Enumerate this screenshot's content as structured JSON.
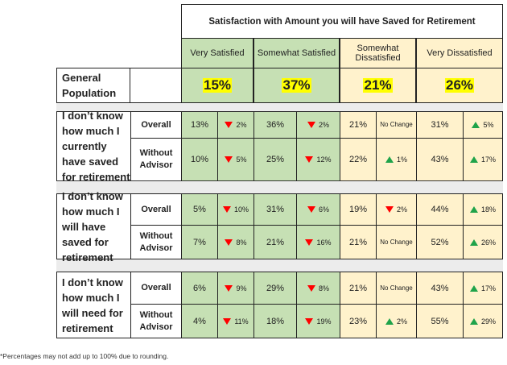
{
  "header": {
    "title": "Satisfaction with Amount you will have Saved for Retirement",
    "categories": [
      "Very Satisfied",
      "Somewhat Satisfied",
      "Somewhat Dissatisfied",
      "Very Dissatisfied"
    ]
  },
  "general": {
    "label": "General Population",
    "values": [
      "15%",
      "37%",
      "21%",
      "26%"
    ]
  },
  "no_change_label": "No Change",
  "blocks": [
    {
      "label": "I don’t know how much I currently have saved for retirement",
      "rows": [
        {
          "sublabel": "Overall",
          "cells": [
            [
              "13%",
              "down",
              "2%"
            ],
            [
              "36%",
              "down",
              "2%"
            ],
            [
              "21%",
              "none",
              ""
            ],
            [
              "31%",
              "up",
              "5%"
            ]
          ]
        },
        {
          "sublabel": "Without Advisor",
          "cells": [
            [
              "10%",
              "down",
              "5%"
            ],
            [
              "25%",
              "down",
              "12%"
            ],
            [
              "22%",
              "up",
              "1%"
            ],
            [
              "43%",
              "up",
              "17%"
            ]
          ]
        }
      ]
    },
    {
      "label": "I don’t know how much I will have saved for retirement",
      "rows": [
        {
          "sublabel": "Overall",
          "cells": [
            [
              "5%",
              "down",
              "10%"
            ],
            [
              "31%",
              "down",
              "6%"
            ],
            [
              "19%",
              "down",
              "2%"
            ],
            [
              "44%",
              "up",
              "18%"
            ]
          ]
        },
        {
          "sublabel": "Without Advisor",
          "cells": [
            [
              "7%",
              "down",
              "8%"
            ],
            [
              "21%",
              "down",
              "16%"
            ],
            [
              "21%",
              "none",
              ""
            ],
            [
              "52%",
              "up",
              "26%"
            ]
          ]
        }
      ]
    },
    {
      "label": "I don’t know how much I will need for retirement",
      "rows": [
        {
          "sublabel": "Overall",
          "cells": [
            [
              "6%",
              "down",
              "9%"
            ],
            [
              "29%",
              "down",
              "8%"
            ],
            [
              "21%",
              "none",
              ""
            ],
            [
              "43%",
              "up",
              "17%"
            ]
          ]
        },
        {
          "sublabel": "Without Advisor",
          "cells": [
            [
              "4%",
              "down",
              "11%"
            ],
            [
              "18%",
              "down",
              "19%"
            ],
            [
              "23%",
              "up",
              "2%"
            ],
            [
              "55%",
              "up",
              "29%"
            ]
          ]
        }
      ]
    }
  ],
  "footnote": "*Percentages may not add up to 100% due to rounding."
}
